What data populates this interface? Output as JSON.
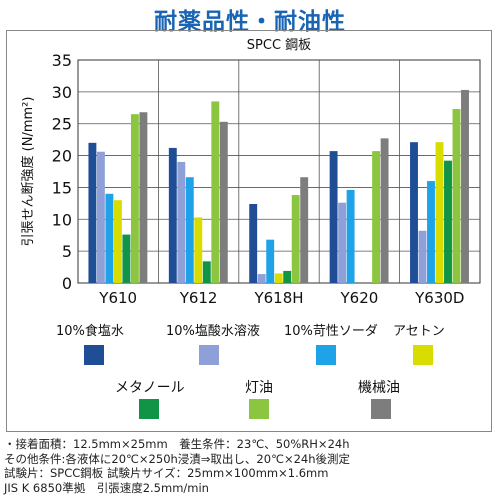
{
  "heading": "耐薬品性・耐油性",
  "chart_data": {
    "type": "bar",
    "title": "SPCC 鋼板",
    "xlabel": "",
    "ylabel": "引張せん断強度 (N/mm²)",
    "ylim": [
      0,
      35
    ],
    "yticks": [
      0,
      5,
      10,
      15,
      20,
      25,
      30,
      35
    ],
    "grid": true,
    "legend_position": "bottom",
    "categories": [
      "Y610",
      "Y612",
      "Y618H",
      "Y620",
      "Y630D"
    ],
    "series": [
      {
        "name": "10%食塩水",
        "color": "#1f4e96",
        "values": [
          22.0,
          21.2,
          12.4,
          20.7,
          22.1
        ]
      },
      {
        "name": "10%塩酸水溶液",
        "color": "#8fa0d8",
        "values": [
          20.6,
          19.0,
          1.4,
          12.6,
          8.2
        ]
      },
      {
        "name": "10%苛性ソーダ",
        "color": "#1fa3e8",
        "values": [
          14.0,
          16.6,
          6.8,
          14.6,
          16.0
        ]
      },
      {
        "name": "アセトン",
        "color": "#d9dc00",
        "values": [
          13.0,
          10.3,
          1.5,
          0,
          22.1
        ]
      },
      {
        "name": "メタノール",
        "color": "#119446",
        "values": [
          7.6,
          3.4,
          1.9,
          0,
          19.2
        ]
      },
      {
        "name": "灯油",
        "color": "#8cc53f",
        "values": [
          26.5,
          28.5,
          13.8,
          20.7,
          27.3
        ]
      },
      {
        "name": "機械油",
        "color": "#7d7d7d",
        "values": [
          26.8,
          25.3,
          16.6,
          22.7,
          30.3
        ]
      }
    ]
  },
  "notes": [
    "・接着面積：12.5mm×25mm　養生条件：23℃、50%RH×24h",
    "その他条件:各液体に20℃×250h浸漬⇒取出し、20℃×24h後測定",
    "試験片：SPCC鋼板  試験片サイズ：25mm×100mm×1.6mm",
    "JIS K 6850準拠　引張速度2.5mm/min"
  ]
}
